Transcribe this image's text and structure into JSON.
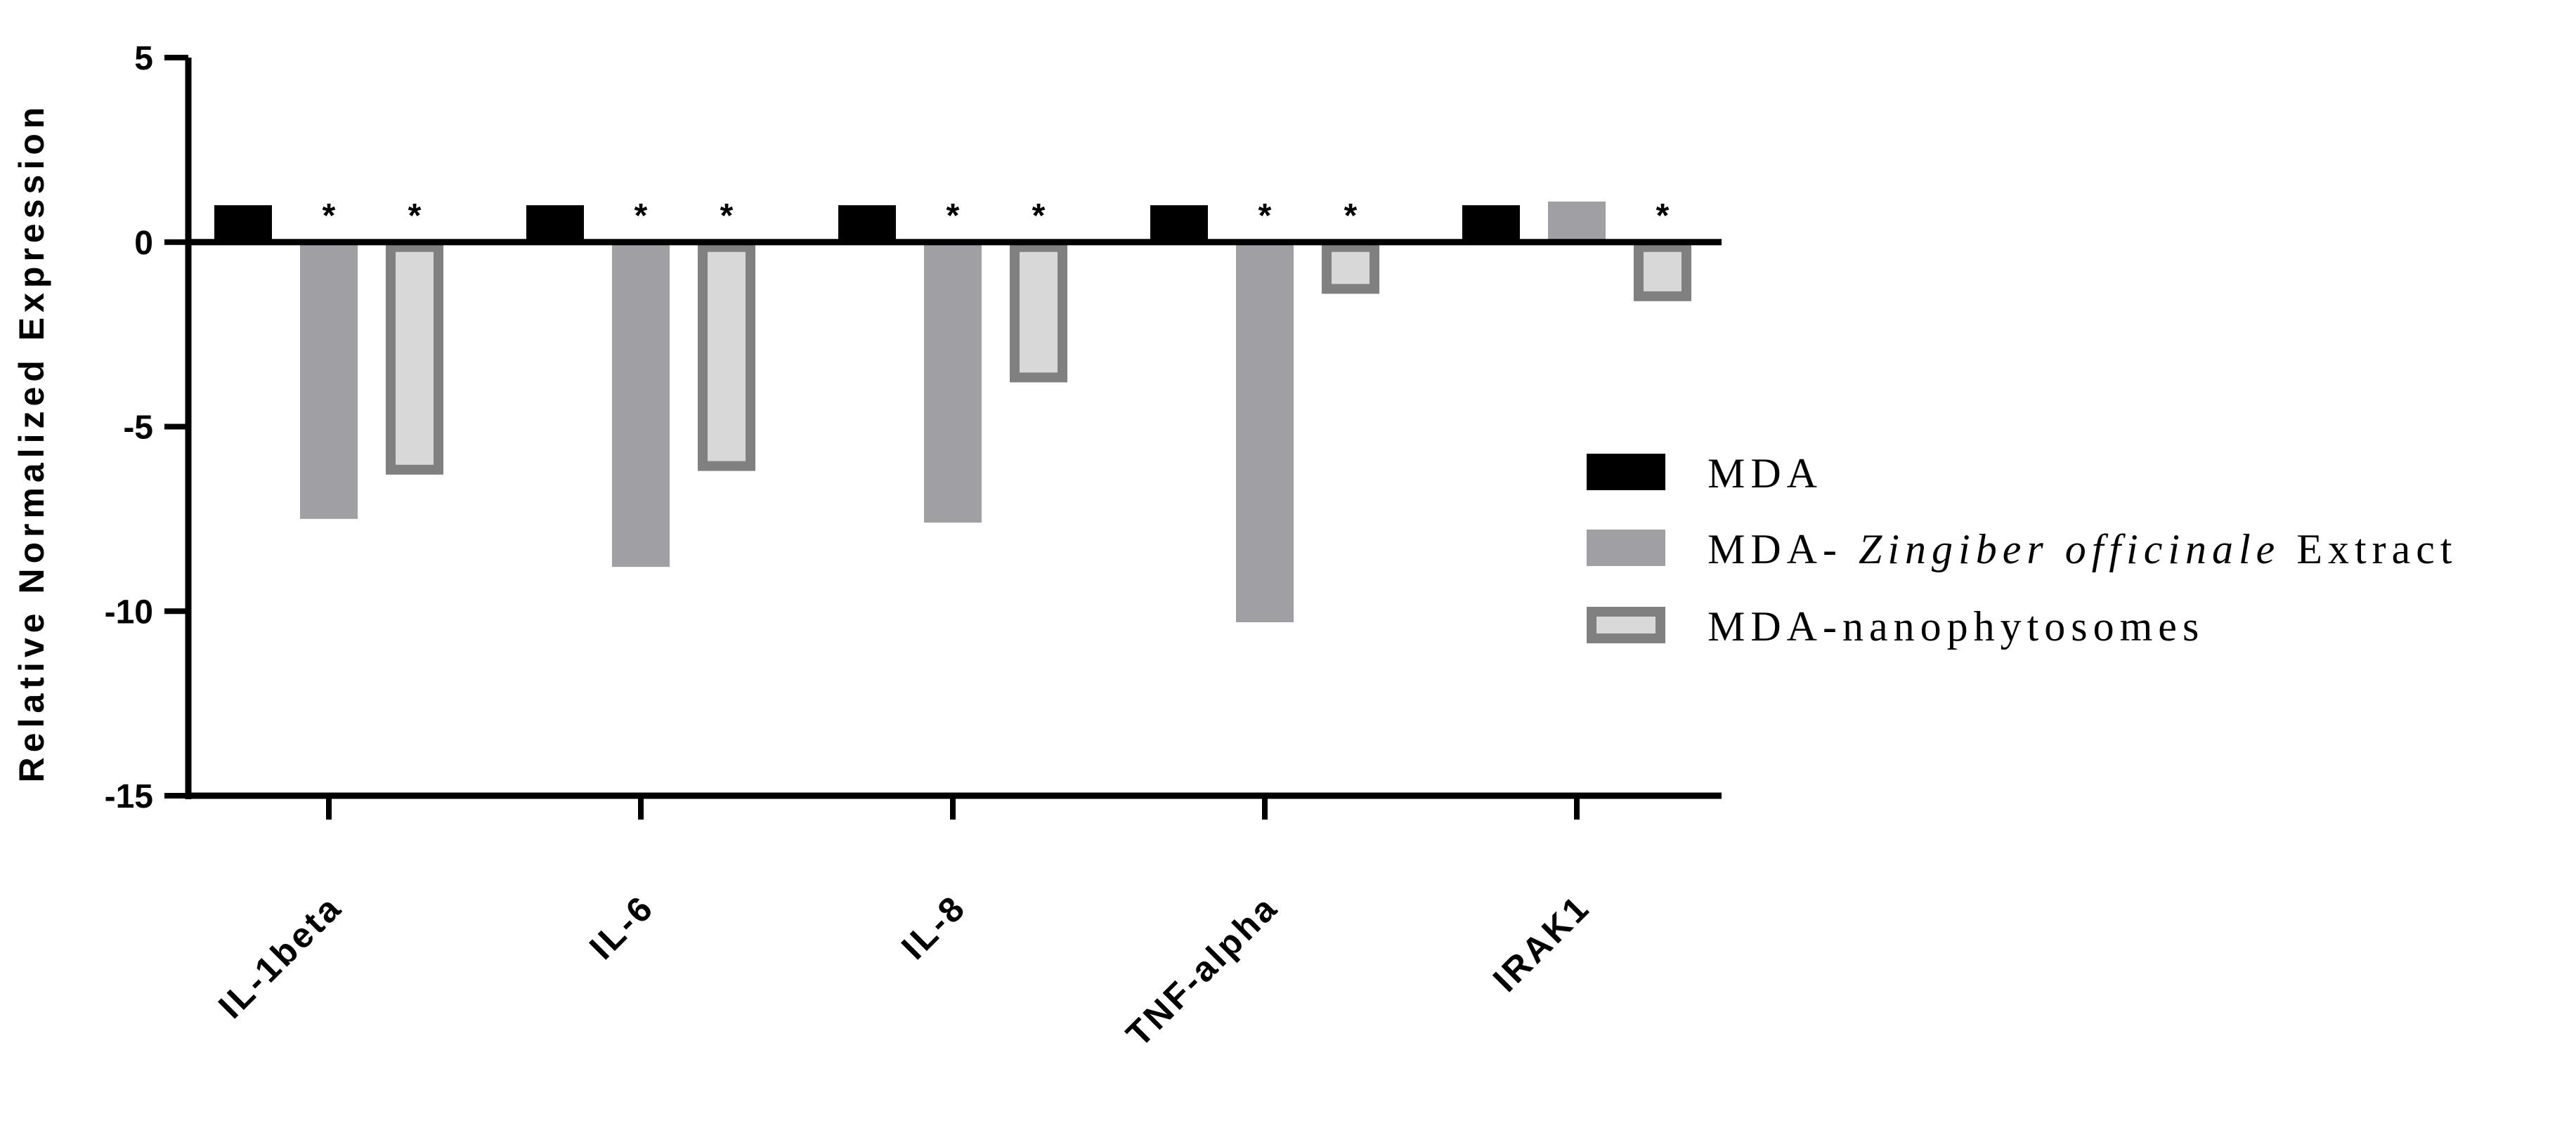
{
  "chart_data": {
    "type": "bar",
    "title": "",
    "ylabel": "Relative Normalized Expression",
    "xlabel": "",
    "ylim": [
      -15,
      5
    ],
    "yticks": [
      5,
      0,
      -5,
      -10,
      -15
    ],
    "categories": [
      "IL-1beta",
      "IL-6",
      "IL-8",
      "TNF-alpha",
      "IRAK1"
    ],
    "series": [
      {
        "name": "MDA",
        "color": "#000000",
        "style": "solid",
        "values": [
          1,
          1,
          1,
          1,
          1
        ],
        "significant": [
          false,
          false,
          false,
          false,
          false
        ]
      },
      {
        "name": "MDA- Zingiber officinale Extract",
        "color": "#a0a0a4",
        "style": "solid",
        "values": [
          -7.5,
          -8.8,
          -7.6,
          -10.3,
          1.1
        ],
        "significant": [
          true,
          true,
          true,
          true,
          false
        ]
      },
      {
        "name": "MDA-nanophytosomes",
        "color": "#d8d8d8",
        "border_color": "#808080",
        "style": "outlined",
        "values": [
          -6.3,
          -6.2,
          -3.8,
          -1.4,
          -1.6
        ],
        "significant": [
          true,
          true,
          true,
          true,
          true
        ]
      }
    ],
    "significance_marker": "*",
    "legend": {
      "position": "right",
      "entries": [
        {
          "prefix": "MDA",
          "italic": "",
          "suffix": ""
        },
        {
          "prefix": "MDA- ",
          "italic": "Zingiber officinale",
          "suffix": " Extract"
        },
        {
          "prefix": "MDA-nanophytosomes",
          "italic": "",
          "suffix": ""
        }
      ]
    }
  }
}
